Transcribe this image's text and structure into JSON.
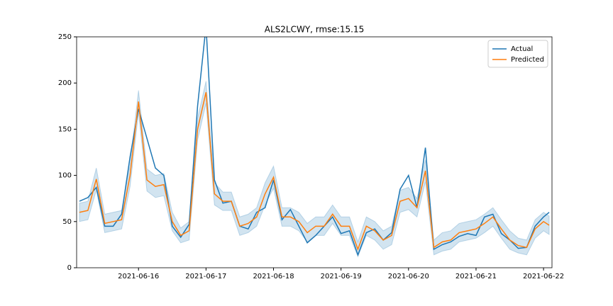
{
  "chart_data": {
    "type": "line",
    "title": "ALS2LCWY, rmse:15.15",
    "x": [
      "2021-06-15T03:00",
      "2021-06-15T06:00",
      "2021-06-15T09:00",
      "2021-06-15T12:00",
      "2021-06-15T15:00",
      "2021-06-15T18:00",
      "2021-06-15T21:00",
      "2021-06-16T00:00",
      "2021-06-16T03:00",
      "2021-06-16T06:00",
      "2021-06-16T09:00",
      "2021-06-16T12:00",
      "2021-06-16T15:00",
      "2021-06-16T18:00",
      "2021-06-16T21:00",
      "2021-06-17T00:00",
      "2021-06-17T03:00",
      "2021-06-17T06:00",
      "2021-06-17T09:00",
      "2021-06-17T12:00",
      "2021-06-17T15:00",
      "2021-06-17T18:00",
      "2021-06-17T21:00",
      "2021-06-18T00:00",
      "2021-06-18T03:00",
      "2021-06-18T06:00",
      "2021-06-18T09:00",
      "2021-06-18T12:00",
      "2021-06-18T15:00",
      "2021-06-18T18:00",
      "2021-06-18T21:00",
      "2021-06-19T00:00",
      "2021-06-19T03:00",
      "2021-06-19T06:00",
      "2021-06-19T09:00",
      "2021-06-19T12:00",
      "2021-06-19T15:00",
      "2021-06-19T18:00",
      "2021-06-19T21:00",
      "2021-06-20T00:00",
      "2021-06-20T03:00",
      "2021-06-20T06:00",
      "2021-06-20T09:00",
      "2021-06-20T12:00",
      "2021-06-20T15:00",
      "2021-06-20T18:00",
      "2021-06-20T21:00",
      "2021-06-21T00:00",
      "2021-06-21T03:00",
      "2021-06-21T06:00",
      "2021-06-21T09:00",
      "2021-06-21T12:00",
      "2021-06-21T15:00",
      "2021-06-21T18:00",
      "2021-06-21T21:00",
      "2021-06-22T00:00",
      "2021-06-22T02:00"
    ],
    "series": [
      {
        "name": "Actual",
        "color": "#1f77b4",
        "values": [
          72,
          76,
          87,
          45,
          45,
          58,
          120,
          172,
          140,
          108,
          100,
          45,
          33,
          47,
          175,
          262,
          95,
          70,
          72,
          45,
          42,
          60,
          65,
          95,
          52,
          63,
          45,
          27,
          35,
          45,
          55,
          37,
          40,
          14,
          38,
          42,
          30,
          38,
          85,
          100,
          65,
          130,
          20,
          25,
          28,
          34,
          37,
          35,
          55,
          58,
          37,
          30,
          21,
          22,
          45,
          55,
          60
        ]
      },
      {
        "name": "Predicted",
        "color": "#ff7f0e",
        "values": [
          60,
          62,
          96,
          48,
          50,
          52,
          100,
          180,
          95,
          88,
          90,
          50,
          35,
          40,
          150,
          190,
          80,
          72,
          72,
          45,
          48,
          55,
          80,
          98,
          55,
          55,
          50,
          38,
          45,
          45,
          58,
          45,
          45,
          20,
          45,
          40,
          30,
          35,
          72,
          75,
          65,
          105,
          22,
          28,
          30,
          38,
          40,
          42,
          48,
          55,
          42,
          30,
          24,
          22,
          42,
          50,
          46
        ],
        "lower": [
          50,
          52,
          84,
          38,
          40,
          42,
          88,
          168,
          83,
          76,
          78,
          40,
          27,
          30,
          138,
          178,
          68,
          62,
          62,
          35,
          38,
          45,
          68,
          86,
          45,
          45,
          40,
          28,
          35,
          35,
          48,
          35,
          35,
          12,
          35,
          30,
          20,
          25,
          60,
          63,
          55,
          93,
          14,
          18,
          20,
          28,
          30,
          32,
          38,
          45,
          32,
          20,
          16,
          14,
          32,
          40,
          36
        ],
        "upper": [
          70,
          72,
          108,
          58,
          60,
          62,
          112,
          192,
          107,
          100,
          102,
          60,
          43,
          50,
          162,
          202,
          92,
          82,
          82,
          55,
          58,
          65,
          92,
          110,
          65,
          65,
          60,
          48,
          55,
          55,
          68,
          55,
          55,
          28,
          55,
          50,
          40,
          45,
          84,
          87,
          75,
          117,
          30,
          38,
          40,
          48,
          50,
          52,
          58,
          65,
          52,
          40,
          32,
          30,
          52,
          60,
          56
        ],
        "band_color": "#1f77b4"
      }
    ],
    "xlim": [
      "2021-06-15T02:00",
      "2021-06-22T03:00"
    ],
    "xticks": [
      "2021-06-16",
      "2021-06-17",
      "2021-06-18",
      "2021-06-19",
      "2021-06-20",
      "2021-06-21",
      "2021-06-22"
    ],
    "ylim": [
      0,
      250
    ],
    "yticks": [
      0,
      50,
      100,
      150,
      200,
      250
    ],
    "grid": false,
    "legend": "upper right"
  }
}
